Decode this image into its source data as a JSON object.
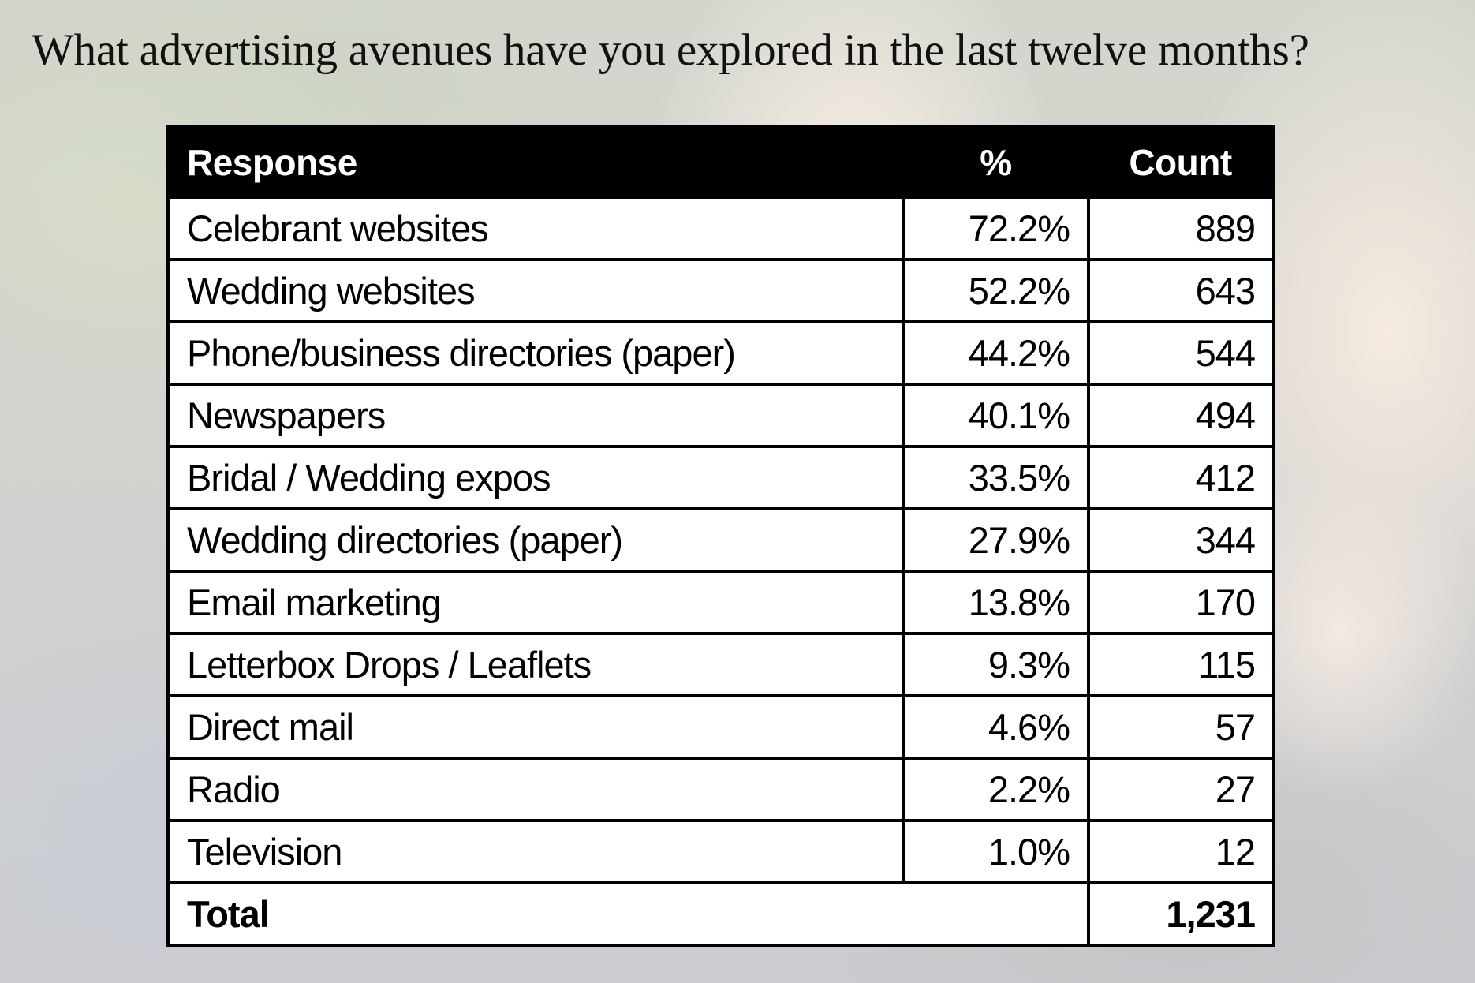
{
  "title": "What advertising avenues have you explored in the last twelve months?",
  "table": {
    "headers": {
      "response": "Response",
      "percent": "%",
      "count": "Count"
    },
    "rows": [
      {
        "response": "Celebrant websites",
        "percent": "72.2%",
        "count": "889"
      },
      {
        "response": "Wedding websites",
        "percent": "52.2%",
        "count": "643"
      },
      {
        "response": "Phone/business directories (paper)",
        "percent": "44.2%",
        "count": "544"
      },
      {
        "response": "Newspapers",
        "percent": "40.1%",
        "count": "494"
      },
      {
        "response": "Bridal / Wedding expos",
        "percent": "33.5%",
        "count": "412"
      },
      {
        "response": "Wedding directories (paper)",
        "percent": "27.9%",
        "count": "344"
      },
      {
        "response": "Email marketing",
        "percent": "13.8%",
        "count": "170"
      },
      {
        "response": "Letterbox Drops / Leaflets",
        "percent": "9.3%",
        "count": "115"
      },
      {
        "response": "Direct mail",
        "percent": "4.6%",
        "count": "57"
      },
      {
        "response": "Radio",
        "percent": "2.2%",
        "count": "27"
      },
      {
        "response": "Television",
        "percent": "1.0%",
        "count": "12"
      }
    ],
    "total": {
      "label": "Total",
      "count": "1,231"
    }
  },
  "colors": {
    "header_bg": "#000000",
    "header_text": "#ffffff",
    "cell_bg": "#ffffff",
    "border": "#000000"
  }
}
